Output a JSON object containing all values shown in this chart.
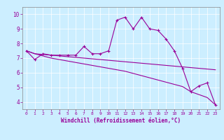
{
  "xlabel": "Windchill (Refroidissement éolien,°C)",
  "bg_color": "#cceeff",
  "line_color": "#990099",
  "x_data": [
    0,
    1,
    2,
    3,
    4,
    5,
    6,
    7,
    8,
    9,
    10,
    11,
    12,
    13,
    14,
    15,
    16,
    17,
    18,
    19,
    20,
    21,
    22,
    23
  ],
  "y_main": [
    7.5,
    6.9,
    7.3,
    7.2,
    7.2,
    7.2,
    7.2,
    7.8,
    7.3,
    7.3,
    7.5,
    9.6,
    9.8,
    9.0,
    9.8,
    9.0,
    8.9,
    8.3,
    7.5,
    6.3,
    4.7,
    5.1,
    5.3,
    3.8
  ],
  "y_trend": [
    7.5,
    7.3,
    7.25,
    7.2,
    7.15,
    7.1,
    7.05,
    7.0,
    6.95,
    6.9,
    6.85,
    6.8,
    6.75,
    6.7,
    6.65,
    6.6,
    6.55,
    6.5,
    6.45,
    6.4,
    6.35,
    6.3,
    6.25,
    6.2
  ],
  "y_trend2": [
    7.5,
    7.3,
    7.15,
    7.0,
    6.9,
    6.8,
    6.7,
    6.6,
    6.5,
    6.4,
    6.3,
    6.2,
    6.1,
    5.95,
    5.8,
    5.65,
    5.5,
    5.35,
    5.2,
    5.05,
    4.7,
    4.5,
    4.3,
    3.8
  ],
  "ylim": [
    3.5,
    10.5
  ],
  "xlim": [
    -0.5,
    23.5
  ],
  "yticks": [
    4,
    5,
    6,
    7,
    8,
    9,
    10
  ],
  "xticks": [
    0,
    1,
    2,
    3,
    4,
    5,
    6,
    7,
    8,
    9,
    10,
    11,
    12,
    13,
    14,
    15,
    16,
    17,
    18,
    19,
    20,
    21,
    22,
    23
  ]
}
